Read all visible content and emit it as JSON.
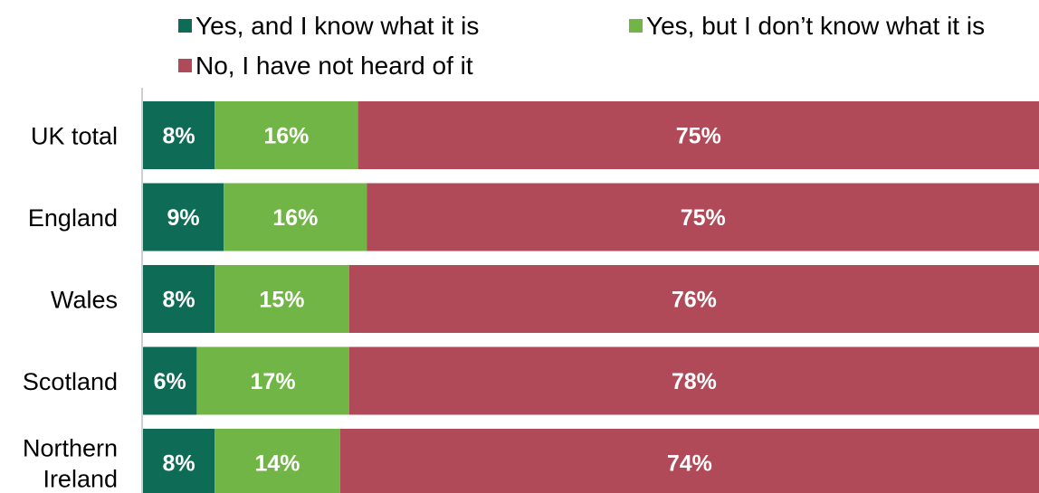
{
  "chart_data": {
    "type": "bar",
    "orientation": "horizontal",
    "stacked": true,
    "title": "",
    "xlabel": "",
    "ylabel": "",
    "xlim": [
      0,
      100
    ],
    "grid": false,
    "legend_position": "top",
    "categories": [
      [
        "UK total"
      ],
      [
        "England"
      ],
      [
        "Wales"
      ],
      [
        "Scotland"
      ],
      [
        "Northern",
        "Ireland"
      ]
    ],
    "series": [
      {
        "name": "Yes, and I know what it is",
        "color": "#0e6b55",
        "values": [
          8,
          9,
          8,
          6,
          8
        ],
        "labels": [
          "8%",
          "9%",
          "8%",
          "6%",
          "8%"
        ]
      },
      {
        "name": "Yes, but I don’t know what it is",
        "color": "#70b545",
        "values": [
          16,
          16,
          15,
          17,
          14
        ],
        "labels": [
          "16%",
          "16%",
          "15%",
          "17%",
          "14%"
        ]
      },
      {
        "name": "No, I have not heard of it",
        "color": "#b14a58",
        "values": [
          75,
          75,
          76,
          78,
          74
        ],
        "labels": [
          "75%",
          "75%",
          "76%",
          "78%",
          "74%"
        ]
      }
    ]
  }
}
